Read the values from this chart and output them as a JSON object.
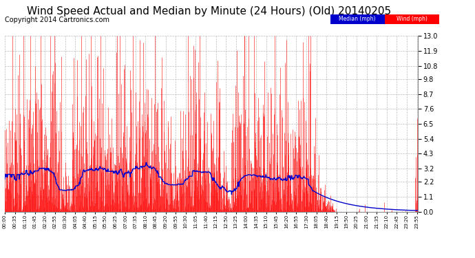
{
  "title": "Wind Speed Actual and Median by Minute (24 Hours) (Old) 20140205",
  "copyright": "Copyright 2014 Cartronics.com",
  "yticks": [
    0.0,
    1.1,
    2.2,
    3.2,
    4.3,
    5.4,
    6.5,
    7.6,
    8.7,
    9.8,
    10.8,
    11.9,
    13.0
  ],
  "ylim": [
    0.0,
    13.0
  ],
  "legend_median_label": "Median (mph)",
  "legend_wind_label": "Wind (mph)",
  "legend_median_color": "#0000cc",
  "legend_wind_color": "#ff0000",
  "background_color": "#ffffff",
  "grid_color": "#bbbbbb",
  "title_fontsize": 11,
  "copyright_fontsize": 7,
  "num_minutes": 1440,
  "tick_interval": 35
}
